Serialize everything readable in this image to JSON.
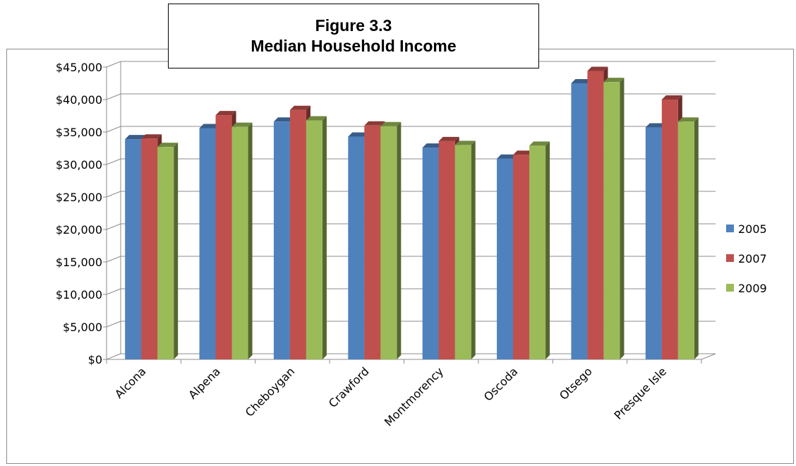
{
  "chart_data": {
    "type": "bar",
    "title": "Figure 3.3",
    "subtitle": "Median Household Income",
    "xlabel": "",
    "ylabel": "",
    "categories": [
      "Alcona",
      "Alpena",
      "Cheboygan",
      "Crawford",
      "Montmorency",
      "Oscoda",
      "Otsego",
      "Presque Isle"
    ],
    "series": [
      {
        "name": "2005",
        "color": "#4F81BD",
        "values": [
          33900,
          35600,
          36600,
          34300,
          32600,
          30900,
          42500,
          35700
        ]
      },
      {
        "name": "2007",
        "color": "#C0504D",
        "values": [
          34000,
          37600,
          38400,
          36000,
          33600,
          31500,
          44400,
          40000
        ]
      },
      {
        "name": "2009",
        "color": "#9BBB59",
        "values": [
          32700,
          35800,
          36800,
          35900,
          33000,
          32900,
          42700,
          36600
        ]
      }
    ],
    "ylim": [
      0,
      45000
    ],
    "yticks": [
      "$0",
      "$5,000",
      "$10,000",
      "$15,000",
      "$20,000",
      "$25,000",
      "$30,000",
      "$35,000",
      "$40,000",
      "$45,000"
    ],
    "grid": true,
    "legend_position": "right",
    "style": "3d-clustered-column"
  }
}
